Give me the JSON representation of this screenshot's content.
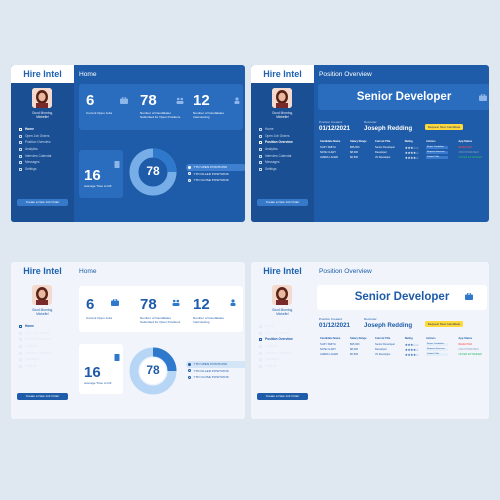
{
  "logo_text": "Hire Intel",
  "user": {
    "greeting": "Good Morning,",
    "name": "Michelle!"
  },
  "nav": [
    "Home",
    "Open Job Orders",
    "Position Overview",
    "Analytics",
    "Interview Calendar",
    "Messages",
    "Settings"
  ],
  "create_button": "Create a New Job Order",
  "home": {
    "title": "Home",
    "stats": [
      {
        "value": "6",
        "label": "Current Open Jobs"
      },
      {
        "value": "78",
        "label": "Number of Candidates Submitted for Open Positions"
      },
      {
        "value": "12",
        "label": "Number of Candidates Interviewing"
      },
      {
        "value": "16",
        "label": "Average Time to Fill"
      }
    ],
    "donut_value": "78",
    "legend": [
      "YTD OPEN POSITIONS",
      "YTD FILLED POSITIONS",
      "YTD CLOSE POSITIONS"
    ]
  },
  "position": {
    "title": "Position Overview",
    "role": "Senior Developer",
    "created_label": "Position Created",
    "created_date": "01/12/2021",
    "recruiter_label": "Recruiter:",
    "recruiter_name": "Joseph Redding",
    "request_button": "Request New Candidate",
    "columns": [
      "Candidate Name",
      "Salary Range",
      "Current Title",
      "Rating",
      "Actions",
      "App Status"
    ],
    "candidates": [
      {
        "name": "SUZY SMITH",
        "salary": "$95,000",
        "title": "Senior Developer",
        "rating": 3,
        "status": "REJECTED",
        "status_class": "status-rejected"
      },
      {
        "name": "NATE CLARY",
        "salary": "$8,000",
        "title": "Developer",
        "rating": 4,
        "status": "2ND INTERVIEW",
        "status_class": "status-interview"
      },
      {
        "name": "JAMES LACER",
        "salary": "$6,500",
        "title": "JS Developer",
        "rating": 4,
        "status": "OFFER EXTENDED",
        "status_class": "status-offer"
      }
    ],
    "actions": [
      "Reject Candidate",
      "Request Interview",
      "Submit Offer"
    ]
  },
  "colors": {
    "dark_bg": "#1e5ba8",
    "dark_card": "#2a6cbd",
    "light_bg": "#f1f5fb",
    "accent": "#1e62b0",
    "yellow": "#ffd93c"
  }
}
